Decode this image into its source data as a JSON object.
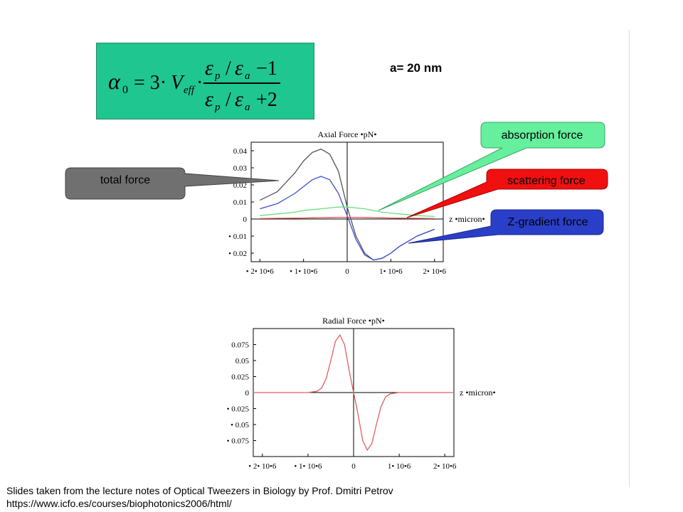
{
  "formula": {
    "alpha": "α",
    "alpha_sub": "0",
    "equals": "= 3·",
    "V": "V",
    "V_sub": "eff",
    "dot": "·",
    "eps": "ε",
    "p": "p",
    "a": "a",
    "slash": "/",
    "num_tail": "−1",
    "den_tail": "+2"
  },
  "a_label": "a= 20 nm",
  "callouts": {
    "total": {
      "text": "total force",
      "color": "#6f6f6f"
    },
    "absorption": {
      "text": "absorption force",
      "color": "#66ef9d"
    },
    "scattering": {
      "text": "scattering force",
      "color": "#f01010"
    },
    "zgradient": {
      "text": "Z-gradient force",
      "color": "#2a3fc8"
    }
  },
  "footer": {
    "line1": "Slides taken from the lecture notes of Optical Tweezers in Biology by Prof. Dmitri Petrov",
    "line2": "https://www.icfo.es/courses/biophotonics2006/html/"
  },
  "chart_data": [
    {
      "type": "line",
      "title": "Axial Force •pN•",
      "xlabel": "z •micron•",
      "xlim": [
        -2.2e-06,
        2.2e-06
      ],
      "ylim": [
        -0.025,
        0.045
      ],
      "x_ticks": [
        -2e-06,
        -1e-06,
        0,
        1e-06,
        2e-06
      ],
      "x_tick_labels": [
        "• 2• 10•6",
        "• 1• 10•6",
        "0",
        "1• 10•6",
        "2• 10•6"
      ],
      "y_ticks": [
        0.04,
        0.03,
        0.02,
        0.01,
        0,
        -0.01,
        -0.02
      ],
      "y_tick_labels": [
        "0.04",
        "0.03",
        "0.02",
        "0.01",
        "0",
        "• 0.01",
        "• 0.02"
      ],
      "grid": false,
      "x": [
        -2e-06,
        -1.6e-06,
        -1.2e-06,
        -1e-06,
        -8e-07,
        -6e-07,
        -4e-07,
        -2e-07,
        0,
        2e-07,
        4e-07,
        6e-07,
        8e-07,
        1e-06,
        1.2e-06,
        1.6e-06,
        2e-06
      ],
      "series": [
        {
          "color": "#555555",
          "values": [
            0.011,
            0.016,
            0.027,
            0.034,
            0.039,
            0.041,
            0.038,
            0.028,
            0.007,
            -0.01,
            -0.02,
            -0.024,
            -0.023,
            -0.02,
            -0.016,
            -0.01,
            -0.006
          ]
        },
        {
          "color": "#3c4fd0",
          "values": [
            0.006,
            0.009,
            0.015,
            0.019,
            0.023,
            0.025,
            0.023,
            0.015,
            0.002,
            -0.012,
            -0.021,
            -0.024,
            -0.023,
            -0.02,
            -0.016,
            -0.01,
            -0.006
          ]
        },
        {
          "color": "#66e07a",
          "values": [
            0.002,
            0.003,
            0.004,
            0.005,
            0.0055,
            0.006,
            0.0065,
            0.007,
            0.007,
            0.0065,
            0.006,
            0.005,
            0.004,
            0.0035,
            0.003,
            0.002,
            0.0015
          ]
        },
        {
          "color": "#e05050",
          "values": [
            0.0003,
            0.0004,
            0.0005,
            0.0006,
            0.0007,
            0.0008,
            0.0009,
            0.001,
            0.001,
            0.001,
            0.0009,
            0.0008,
            0.0007,
            0.0006,
            0.0005,
            0.0004,
            0.0003
          ]
        }
      ]
    },
    {
      "type": "line",
      "title": "Radial Force •pN•",
      "xlabel": "z •micron•",
      "xlim": [
        -2.2e-06,
        2.2e-06
      ],
      "ylim": [
        -0.1,
        0.1
      ],
      "x_ticks": [
        -2e-06,
        -1e-06,
        0,
        1e-06,
        2e-06
      ],
      "x_tick_labels": [
        "• 2• 10•6",
        "• 1• 10•6",
        "0",
        "1• 10•6",
        "2• 10•6"
      ],
      "y_ticks": [
        0.075,
        0.05,
        0.025,
        0,
        -0.025,
        -0.05,
        -0.075
      ],
      "y_tick_labels": [
        "0.075",
        "0.05",
        "0.025",
        "0",
        "• 0.025",
        "• 0.05",
        "• 0.075"
      ],
      "grid": false,
      "x": [
        -2.2e-06,
        -1e-06,
        -8e-07,
        -7e-07,
        -6e-07,
        -5e-07,
        -4e-07,
        -3e-07,
        -2e-07,
        -1e-07,
        0,
        1e-07,
        2e-07,
        3e-07,
        4e-07,
        5e-07,
        6e-07,
        7e-07,
        8e-07,
        1e-06,
        2.2e-06
      ],
      "series": [
        {
          "color": "#e06060",
          "values": [
            0,
            0,
            0.002,
            0.007,
            0.022,
            0.05,
            0.08,
            0.09,
            0.075,
            0.035,
            0,
            -0.035,
            -0.075,
            -0.09,
            -0.08,
            -0.05,
            -0.022,
            -0.007,
            -0.002,
            0,
            0
          ]
        }
      ]
    }
  ]
}
